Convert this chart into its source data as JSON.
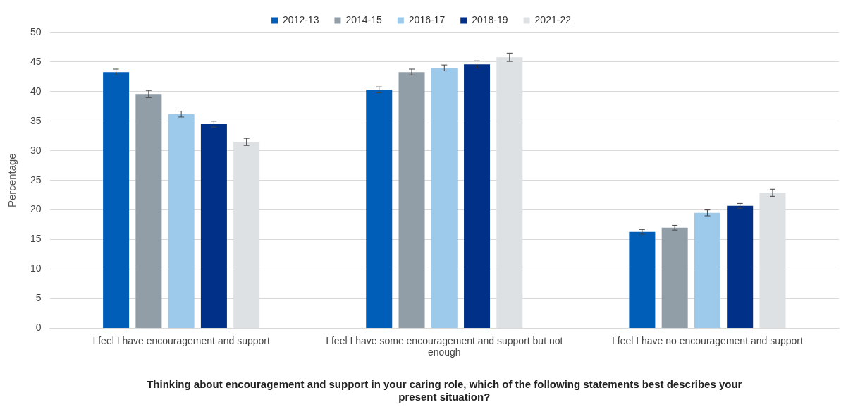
{
  "chart_data": {
    "type": "bar",
    "xlabel": "Thinking about encouragement and support in your caring role, which of the following statements best describes your present situation?",
    "ylabel": "Percentage",
    "categories": [
      "I feel I have encouragement and support",
      "I feel I have some encouragement and support but not enough",
      "I feel I have no encouragement and support"
    ],
    "series": [
      {
        "name": "2012-13",
        "color": "#005eb8",
        "values": [
          43.3,
          40.3,
          16.3
        ],
        "errors": [
          0.5,
          0.5,
          0.4
        ]
      },
      {
        "name": "2014-15",
        "color": "#919ea8",
        "values": [
          39.6,
          43.3,
          17.0
        ],
        "errors": [
          0.6,
          0.5,
          0.4
        ]
      },
      {
        "name": "2016-17",
        "color": "#9dc9ea",
        "values": [
          36.2,
          44.0,
          19.5
        ],
        "errors": [
          0.5,
          0.5,
          0.5
        ]
      },
      {
        "name": "2018-19",
        "color": "#003087",
        "values": [
          34.5,
          44.6,
          20.7
        ],
        "errors": [
          0.5,
          0.6,
          0.4
        ]
      },
      {
        "name": "2021-22",
        "color": "#dde1e4",
        "values": [
          31.5,
          45.8,
          22.9
        ],
        "errors": [
          0.6,
          0.7,
          0.6
        ]
      }
    ],
    "ylim": [
      0,
      50
    ],
    "yticks": [
      0,
      5,
      10,
      15,
      20,
      25,
      30,
      35,
      40,
      45,
      50
    ],
    "grid": "y",
    "legend": "top"
  }
}
